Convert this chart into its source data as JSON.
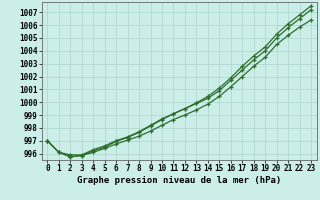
{
  "title": "Graphe pression niveau de la mer (hPa)",
  "bg_color": "#cceee8",
  "grid_color": "#aad4cc",
  "line_color": "#2d6e2d",
  "x_ticks": [
    0,
    1,
    2,
    3,
    4,
    5,
    6,
    7,
    8,
    9,
    10,
    11,
    12,
    13,
    14,
    15,
    16,
    17,
    18,
    19,
    20,
    21,
    22,
    23
  ],
  "ylim": [
    995.5,
    1007.8
  ],
  "xlim": [
    -0.5,
    23.5
  ],
  "line1": [
    997.0,
    996.1,
    995.9,
    995.9,
    996.3,
    996.6,
    997.0,
    997.3,
    997.7,
    998.2,
    998.7,
    999.1,
    999.5,
    999.9,
    1000.3,
    1000.9,
    1001.7,
    1002.5,
    1003.3,
    1004.0,
    1005.0,
    1005.8,
    1006.5,
    1007.2
  ],
  "line2": [
    997.0,
    996.1,
    995.75,
    995.85,
    996.1,
    996.4,
    996.75,
    997.05,
    997.35,
    997.75,
    998.2,
    998.65,
    999.0,
    999.4,
    999.85,
    1000.45,
    1001.2,
    1002.0,
    1002.8,
    1003.5,
    1004.5,
    1005.2,
    1005.85,
    1006.4
  ],
  "line3": [
    997.0,
    996.1,
    995.75,
    995.85,
    996.2,
    996.5,
    996.95,
    997.25,
    997.65,
    998.15,
    998.65,
    999.1,
    999.5,
    999.95,
    1000.45,
    1001.1,
    1001.9,
    1002.8,
    1003.6,
    1004.3,
    1005.3,
    1006.1,
    1006.8,
    1007.5
  ],
  "yticks": [
    996,
    997,
    998,
    999,
    1000,
    1001,
    1002,
    1003,
    1004,
    1005,
    1006,
    1007
  ],
  "tick_fontsize": 5.5,
  "xlabel_fontsize": 6.5
}
